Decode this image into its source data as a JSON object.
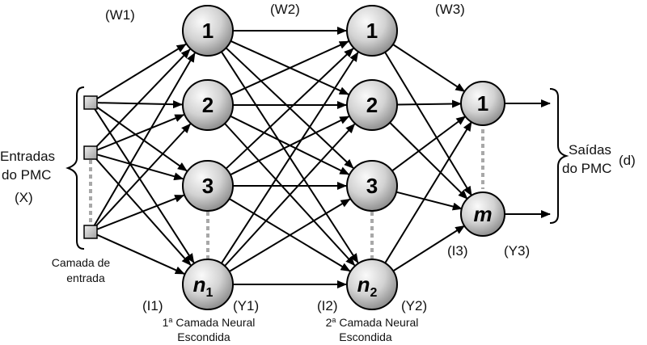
{
  "weights": {
    "w1": "(W1)",
    "w2": "(W2)",
    "w3": "(W3)"
  },
  "inputs": {
    "label_line1": "Entradas",
    "label_line2": "do PMC",
    "symbol": "(X)",
    "layer_line1": "Camada de",
    "layer_line2": "entrada"
  },
  "hidden1": {
    "nodes": [
      "1",
      "2",
      "3"
    ],
    "last_node": "n",
    "last_sub": "1",
    "in_label": "(I1)",
    "out_label": "(Y1)",
    "title_ordinal": "1",
    "title_sup": "a",
    "title_line1": " Camada Neural",
    "title_line2": "Escondida"
  },
  "hidden2": {
    "nodes": [
      "1",
      "2",
      "3"
    ],
    "last_node": "n",
    "last_sub": "2",
    "in_label": "(I2)",
    "out_label": "(Y2)",
    "title_ordinal": "2",
    "title_sup": "a",
    "title_line1": " Camada Neural",
    "title_line2": "Escondida"
  },
  "output": {
    "nodes": [
      "1"
    ],
    "last_node": "m",
    "in_label": "(I3)",
    "out_label": "(Y3)",
    "label_line1": "Saídas",
    "label_line2": "do PMC",
    "symbol": "(d)"
  },
  "colors": {
    "node_fill_light": "#f4f4f4",
    "node_fill_dark": "#9a9a9a",
    "edge": "#000000",
    "dots": "#a8a8a8"
  }
}
